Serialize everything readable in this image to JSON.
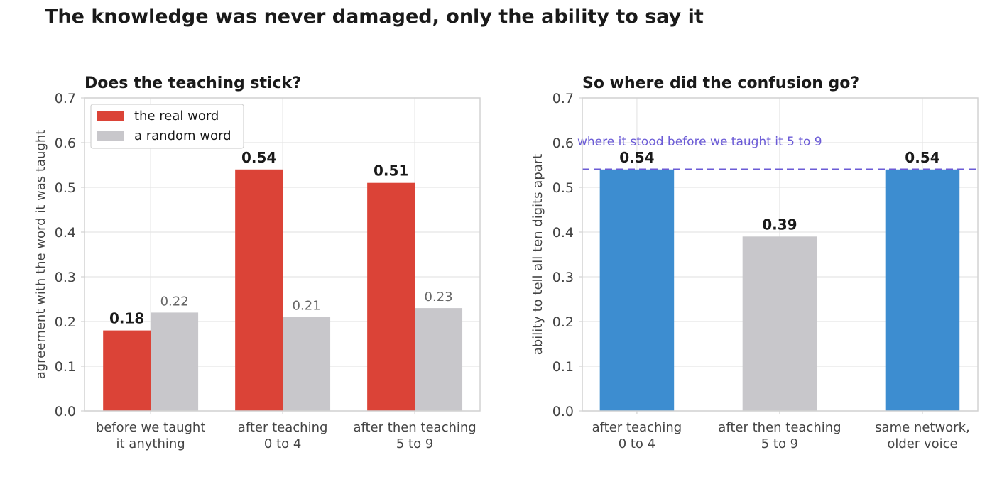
{
  "suptitle": "The knowledge was never damaged, only the ability to say it",
  "colors": {
    "real": "#db4337",
    "random": "#c8c7cb",
    "blue": "#3d8dd0",
    "reference": "#6b5bd6",
    "grid": "#e5e5e5",
    "spine": "#d2d2d2",
    "tick_text": "#444444",
    "data_label_muted": "#666666"
  },
  "chart_data": [
    {
      "type": "bar",
      "title": "Does the teaching stick?",
      "xlabel": "",
      "ylabel": "agreement with the word it was taught",
      "ylim": [
        0,
        0.7
      ],
      "yticks": [
        "0.0",
        "0.1",
        "0.2",
        "0.3",
        "0.4",
        "0.5",
        "0.6",
        "0.7"
      ],
      "grid": true,
      "legend_position": "top-left",
      "categories": [
        [
          "before we taught",
          "it anything"
        ],
        [
          "after teaching",
          "0 to 4"
        ],
        [
          "after then teaching",
          "5 to 9"
        ]
      ],
      "series": [
        {
          "name": "the real word",
          "color": "#db4337",
          "values": [
            0.18,
            0.54,
            0.51
          ],
          "labels": [
            "0.18",
            "0.54",
            "0.51"
          ],
          "label_style": "bold"
        },
        {
          "name": "a random word",
          "color": "#c8c7cb",
          "values": [
            0.22,
            0.21,
            0.23
          ],
          "labels": [
            "0.22",
            "0.21",
            "0.23"
          ],
          "label_style": "muted"
        }
      ]
    },
    {
      "type": "bar",
      "title": "So where did the confusion go?",
      "xlabel": "",
      "ylabel": "ability to tell all ten digits apart",
      "ylim": [
        0,
        0.7
      ],
      "yticks": [
        "0.0",
        "0.1",
        "0.2",
        "0.3",
        "0.4",
        "0.5",
        "0.6",
        "0.7"
      ],
      "grid": true,
      "categories": [
        [
          "after teaching",
          "0 to 4"
        ],
        [
          "after then teaching",
          "5 to 9"
        ],
        [
          "same network,",
          "older voice"
        ]
      ],
      "values": [
        0.54,
        0.39,
        0.54
      ],
      "labels": [
        "0.54",
        "0.39",
        "0.54"
      ],
      "colors": [
        "#3d8dd0",
        "#c8c7cb",
        "#3d8dd0"
      ],
      "reference_line": {
        "value": 0.54,
        "label": "where it stood before we taught it 5 to 9",
        "style": "dashed"
      }
    }
  ]
}
